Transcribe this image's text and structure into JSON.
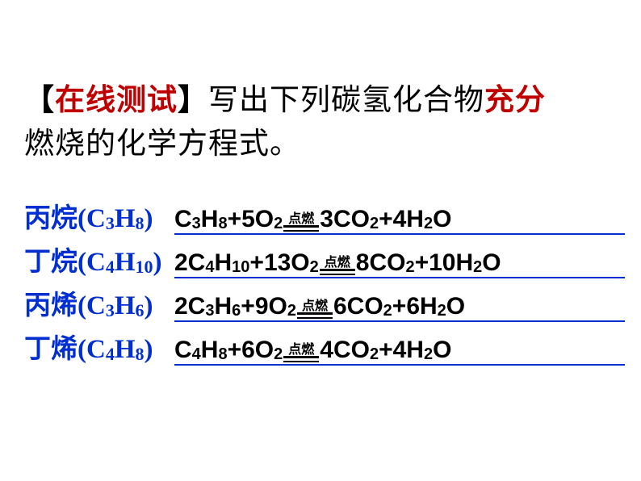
{
  "title": {
    "bracket_open": "【",
    "red1": "在线测试",
    "bracket_close": "】",
    "mid1": "写出下列碳氢化合物",
    "red2": "充分",
    "line2": "燃烧的化学方程式。"
  },
  "condition_label": "点燃",
  "rows": [
    {
      "label_name": "丙烷",
      "label_formula": [
        "C",
        "3",
        "H",
        "8"
      ],
      "lhs": [
        [
          "C",
          "3",
          "H",
          "8"
        ],
        "+",
        [
          "5O",
          "2"
        ]
      ],
      "rhs": [
        [
          "3CO",
          "2"
        ],
        "+",
        [
          "4H",
          "2",
          "O"
        ]
      ]
    },
    {
      "label_name": "丁烷",
      "label_formula": [
        "C",
        "4",
        "H",
        "10"
      ],
      "lhs": [
        [
          "2C",
          "4",
          "H",
          "10"
        ],
        "+",
        [
          "13O",
          "2"
        ]
      ],
      "rhs": [
        [
          "8CO",
          "2"
        ],
        "+",
        [
          "10H",
          "2",
          "O"
        ]
      ]
    },
    {
      "label_name": "丙烯",
      "label_formula": [
        "C",
        "3",
        "H",
        "6"
      ],
      "lhs": [
        [
          "2C",
          "3",
          "H",
          "6"
        ],
        "+",
        [
          "9O",
          "2"
        ]
      ],
      "rhs": [
        [
          "6CO",
          "2"
        ],
        "+",
        [
          "6H",
          "2",
          "O"
        ]
      ]
    },
    {
      "label_name": "丁烯",
      "label_formula": [
        "C",
        "4",
        "H",
        "8"
      ],
      "lhs": [
        [
          "C",
          "4",
          "H",
          "8"
        ],
        "+",
        [
          "6O",
          "2"
        ]
      ],
      "rhs": [
        [
          "4CO",
          "2"
        ],
        "+",
        [
          "4H",
          "2",
          "O"
        ]
      ]
    }
  ],
  "colors": {
    "red": "#c00000",
    "blue": "#002ed1",
    "black": "#000000",
    "bg": "#ffffff"
  }
}
